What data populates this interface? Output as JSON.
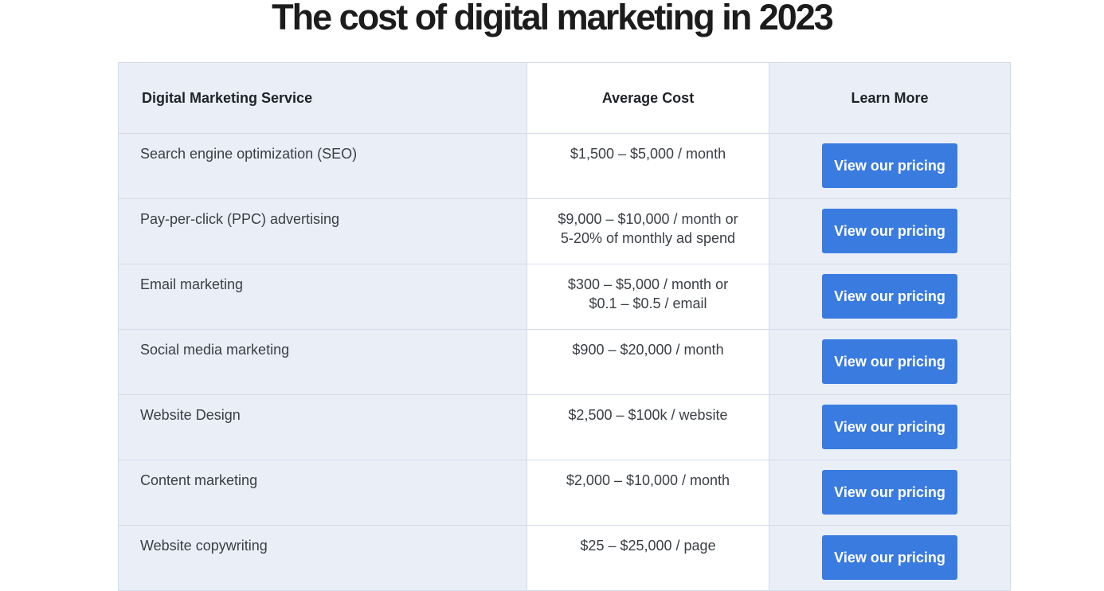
{
  "page": {
    "title": "The cost of digital marketing in 2023"
  },
  "table": {
    "headers": {
      "service": "Digital Marketing Service",
      "cost": "Average Cost",
      "learn": "Learn More"
    },
    "rows": [
      {
        "service": "Search engine optimization (SEO)",
        "cost_lines": [
          "$1,500 – $5,000 / month"
        ],
        "button": "View our pricing"
      },
      {
        "service": "Pay-per-click (PPC) advertising",
        "cost_lines": [
          "$9,000 – $10,000 / month or",
          "5-20% of monthly ad spend"
        ],
        "button": "View our pricing"
      },
      {
        "service": "Email marketing",
        "cost_lines": [
          "$300 – $5,000 / month or",
          "$0.1 – $0.5 / email"
        ],
        "button": "View our pricing"
      },
      {
        "service": "Social media marketing",
        "cost_lines": [
          "$900 – $20,000 / month"
        ],
        "button": "View our pricing"
      },
      {
        "service": "Website Design",
        "cost_lines": [
          "$2,500 – $100k / website"
        ],
        "button": "View our pricing"
      },
      {
        "service": "Content marketing",
        "cost_lines": [
          "$2,000 – $10,000 / month"
        ],
        "button": "View our pricing"
      },
      {
        "service": "Website copywriting",
        "cost_lines": [
          "$25 – $25,000 / page"
        ],
        "button": "View our pricing"
      }
    ]
  },
  "colors": {
    "button_bg": "#3a7be0",
    "shaded_column": "#e9eef7",
    "title_text": "#1c1c1c"
  }
}
